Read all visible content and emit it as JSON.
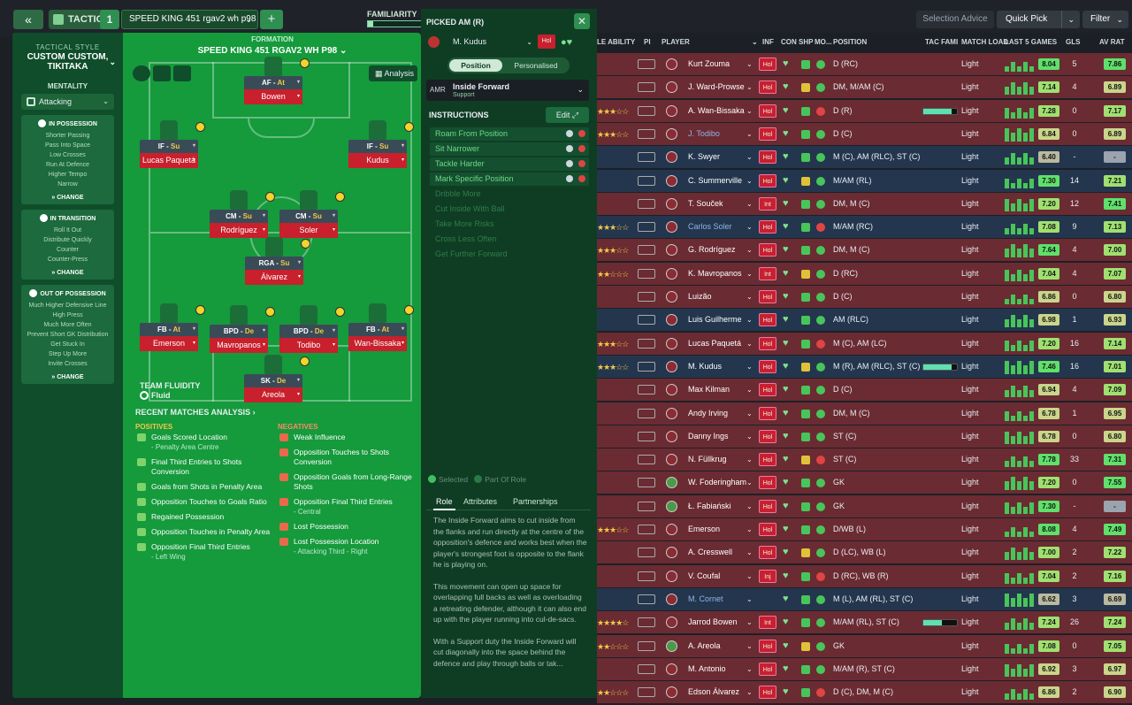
{
  "topbar": {
    "tactics_label": "TACTICS",
    "slot": "1",
    "tactic_name": "SPEED KING 451 rgav2 wh p98",
    "familiarity_label": "FAMILIARITY",
    "familiarity": 0.1,
    "selection_advice": "Selection Advice",
    "quick_pick": "Quick Pick",
    "filter": "Filter"
  },
  "style": {
    "tactical_style_label": "TACTICAL STYLE",
    "tactical_style": "CUSTOM CUSTOM, TIKITAKA",
    "mentality_label": "MENTALITY",
    "mentality": "Attacking",
    "in_possession": {
      "title": "IN POSSESSION",
      "items": [
        "Shorter Passing",
        "Pass Into Space",
        "Low Crosses",
        "Run At Defence",
        "Higher Tempo",
        "Narrow"
      ]
    },
    "in_transition": {
      "title": "IN TRANSITION",
      "items": [
        "Roll It Out",
        "Distribute Quickly",
        "Counter",
        "Counter-Press"
      ]
    },
    "out_of_possession": {
      "title": "OUT OF POSSESSION",
      "items": [
        "Much Higher Defensive Line",
        "High Press",
        "Much More Often",
        "Prevent Short GK Distribution",
        "Get Stuck In",
        "Step Up More",
        "Invite Crosses"
      ]
    },
    "change": "CHANGE"
  },
  "formation": {
    "label": "FORMATION",
    "name": "SPEED KING 451 RGAV2 WH P98",
    "analysis": "Analysis",
    "fluidity_label": "TEAM FLUIDITY",
    "fluidity": "Fluid",
    "players": [
      {
        "role": "AF",
        "duty": "At",
        "name": "Bowen"
      },
      {
        "role": "IF",
        "duty": "Su",
        "name": "Lucas Paquetá"
      },
      {
        "role": "IF",
        "duty": "Su",
        "name": "Kudus"
      },
      {
        "role": "CM",
        "duty": "Su",
        "name": "Rodríguez"
      },
      {
        "role": "CM",
        "duty": "Su",
        "name": "Soler"
      },
      {
        "role": "RGA",
        "duty": "Su",
        "name": "Álvarez"
      },
      {
        "role": "FB",
        "duty": "At",
        "name": "Emerson"
      },
      {
        "role": "BPD",
        "duty": "De",
        "name": "Mavropanos"
      },
      {
        "role": "BPD",
        "duty": "De",
        "name": "Todibo"
      },
      {
        "role": "FB",
        "duty": "At",
        "name": "Wan-Bissaka"
      },
      {
        "role": "SK",
        "duty": "De",
        "name": "Areola"
      }
    ]
  },
  "analysis": {
    "title": "RECENT MATCHES ANALYSIS ›",
    "positives_label": "POSITIVES",
    "negatives_label": "NEGATIVES",
    "positives": [
      {
        "t": "Goals Scored Location",
        "s": "- Penalty Area Centre"
      },
      {
        "t": "Final Third Entries to Shots Conversion",
        "s": ""
      },
      {
        "t": "Goals from Shots in Penalty Area",
        "s": ""
      },
      {
        "t": "Opposition Touches to Goals Ratio",
        "s": ""
      },
      {
        "t": "Regained Possession",
        "s": ""
      },
      {
        "t": "Opposition Touches in Penalty Area",
        "s": ""
      },
      {
        "t": "Opposition Final Third Entries",
        "s": "- Left Wing"
      }
    ],
    "negatives": [
      {
        "t": "Weak Influence",
        "s": ""
      },
      {
        "t": "Opposition Touches to Shots Conversion",
        "s": ""
      },
      {
        "t": "Opposition Goals from Long-Range Shots",
        "s": ""
      },
      {
        "t": "Opposition Final Third Entries",
        "s": "- Central"
      },
      {
        "t": "Lost Possession",
        "s": ""
      },
      {
        "t": "Lost Possession Location",
        "s": "- Attacking Third - Right"
      }
    ]
  },
  "picked": {
    "title": "PICKED AM (R)",
    "player": "M. Kudus",
    "hol": "Hol",
    "tab_position": "Position",
    "tab_personalised": "Personalised",
    "role_abbr": "AMR",
    "role_name": "Inside Forward",
    "role_duty": "Support",
    "instructions_label": "INSTRUCTIONS",
    "edit": "Edit",
    "instructions_on": [
      "Roam From Position",
      "Sit Narrower",
      "Tackle Harder",
      "Mark Specific Position"
    ],
    "instructions_off": [
      "Dribble More",
      "Cut Inside With Ball",
      "Take More Risks",
      "Cross Less Often",
      "Get Further Forward"
    ],
    "legend_selected": "Selected",
    "legend_part": "Part Of Role",
    "tabs": [
      "Role",
      "Attributes",
      "Partnerships"
    ],
    "desc": [
      "The Inside Forward aims to cut inside from the flanks and run directly at the centre of the opposition's defence and works best when the player's strongest foot is opposite to the flank he is playing on.",
      "This movement can open up space for overlapping full backs as well as overloading a retreating defender, although it can also end up with the player running into cul-de-sacs.",
      "With a Support duty the Inside Forward will cut diagonally into the space behind the defence and play through balls or tak..."
    ]
  },
  "table": {
    "headers": {
      "ability": "LE ABILITY",
      "pi": "PI",
      "player": "PLAYER",
      "inf": "INF",
      "con": "CON",
      "shp": "SHP",
      "mo": "MO...",
      "position": "POSITION",
      "tac": "TAC FAMI",
      "load": "MATCH LOAD",
      "last5": "LAST 5 GAMES",
      "gls": "GLS",
      "avrat": "AV RAT"
    },
    "rows": [
      {
        "name": "Kurt Zouma",
        "pos": "D (RC)",
        "load": "Light",
        "rat": "8.04",
        "gls": "5",
        "av": "7.86",
        "bg": "red",
        "inf": "Hol",
        "stars": ""
      },
      {
        "name": "J. Ward-Prowse",
        "pos": "DM, M/AM (C)",
        "load": "Light",
        "rat": "7.14",
        "gls": "4",
        "av": "6.89",
        "bg": "red",
        "inf": "Hol",
        "stars": ""
      },
      {
        "name": "A. Wan-Bissaka",
        "pos": "D (R)",
        "load": "Light",
        "rat": "7.28",
        "gls": "0",
        "av": "7.17",
        "bg": "red",
        "inf": "Hol",
        "stars": "★★★☆☆"
      },
      {
        "name": "J. Todibo",
        "pos": "D (C)",
        "load": "Light",
        "rat": "6.84",
        "gls": "0",
        "av": "6.89",
        "bg": "red",
        "inf": "Hol",
        "stars": "★★★☆☆",
        "link": true
      },
      {
        "name": "K. Swyer",
        "pos": "M (C), AM (RLC), ST (C)",
        "load": "Light",
        "rat": "6.40",
        "gls": "-",
        "av": "-",
        "bg": "blue",
        "inf": "Hol",
        "stars": ""
      },
      {
        "name": "C. Summerville",
        "pos": "M/AM (RL)",
        "load": "Light",
        "rat": "7.30",
        "gls": "14",
        "av": "7.21",
        "bg": "blue",
        "inf": "Hol",
        "stars": ""
      },
      {
        "name": "T. Souček",
        "pos": "DM, M (C)",
        "load": "Light",
        "rat": "7.20",
        "gls": "12",
        "av": "7.41",
        "bg": "red",
        "inf": "Int",
        "stars": ""
      },
      {
        "name": "Carlos Soler",
        "pos": "M/AM (RC)",
        "load": "Light",
        "rat": "7.08",
        "gls": "9",
        "av": "7.13",
        "bg": "blue",
        "inf": "Hol",
        "stars": "★★★☆☆",
        "link": true
      },
      {
        "name": "G. Rodríguez",
        "pos": "DM, M (C)",
        "load": "Light",
        "rat": "7.64",
        "gls": "4",
        "av": "7.00",
        "bg": "red",
        "inf": "Hol",
        "stars": "★★★☆☆"
      },
      {
        "name": "K. Mavropanos",
        "pos": "D (RC)",
        "load": "Light",
        "rat": "7.04",
        "gls": "4",
        "av": "7.07",
        "bg": "red",
        "inf": "Int",
        "stars": "★★☆☆☆"
      },
      {
        "name": "Luizão",
        "pos": "D (C)",
        "load": "Light",
        "rat": "6.86",
        "gls": "0",
        "av": "6.80",
        "bg": "red",
        "inf": "Hol",
        "stars": ""
      },
      {
        "name": "Luis Guilherme",
        "pos": "AM (RLC)",
        "load": "Light",
        "rat": "6.98",
        "gls": "1",
        "av": "6.93",
        "bg": "blue",
        "inf": "Hol",
        "stars": ""
      },
      {
        "name": "Lucas Paquetá",
        "pos": "M (C), AM (LC)",
        "load": "Light",
        "rat": "7.20",
        "gls": "16",
        "av": "7.14",
        "bg": "red",
        "inf": "Hol",
        "stars": "★★★☆☆"
      },
      {
        "name": "M. Kudus",
        "pos": "M (R), AM (RLC), ST (C)",
        "load": "Light",
        "rat": "7.46",
        "gls": "16",
        "av": "7.01",
        "bg": "blue",
        "inf": "Hol",
        "stars": "★★★☆☆"
      },
      {
        "name": "Max Kilman",
        "pos": "D (C)",
        "load": "Light",
        "rat": "6.94",
        "gls": "4",
        "av": "7.09",
        "bg": "red",
        "inf": "Hol",
        "stars": ""
      },
      {
        "name": "Andy Irving",
        "pos": "DM, M (C)",
        "load": "Light",
        "rat": "6.78",
        "gls": "1",
        "av": "6.95",
        "bg": "red",
        "inf": "Hol",
        "stars": ""
      },
      {
        "name": "Danny Ings",
        "pos": "ST (C)",
        "load": "Light",
        "rat": "6.78",
        "gls": "0",
        "av": "6.80",
        "bg": "red",
        "inf": "Hol",
        "stars": ""
      },
      {
        "name": "N. Füllkrug",
        "pos": "ST (C)",
        "load": "Light",
        "rat": "7.78",
        "gls": "33",
        "av": "7.31",
        "bg": "red",
        "inf": "Hol",
        "stars": ""
      },
      {
        "name": "W. Foderingham",
        "pos": "GK",
        "load": "Light",
        "rat": "7.20",
        "gls": "0",
        "av": "7.55",
        "bg": "red",
        "inf": "Hol",
        "stars": "",
        "gk": true
      },
      {
        "name": "Ł. Fabiański",
        "pos": "GK",
        "load": "Light",
        "rat": "7.30",
        "gls": "-",
        "av": "-",
        "bg": "red",
        "inf": "Hol",
        "stars": "",
        "gk": true
      },
      {
        "name": "Emerson",
        "pos": "D/WB (L)",
        "load": "Light",
        "rat": "8.08",
        "gls": "4",
        "av": "7.49",
        "bg": "red",
        "inf": "Hol",
        "stars": "★★★☆☆"
      },
      {
        "name": "A. Cresswell",
        "pos": "D (LC), WB (L)",
        "load": "Light",
        "rat": "7.00",
        "gls": "2",
        "av": "7.22",
        "bg": "red",
        "inf": "Hol",
        "stars": ""
      },
      {
        "name": "V. Coufal",
        "pos": "D (RC), WB (R)",
        "load": "Light",
        "rat": "7.04",
        "gls": "2",
        "av": "7.16",
        "bg": "red",
        "inf": "Inj",
        "stars": ""
      },
      {
        "name": "M. Cornet",
        "pos": "M (L), AM (RL), ST (C)",
        "load": "Light",
        "rat": "6.62",
        "gls": "3",
        "av": "6.69",
        "bg": "blue",
        "inf": "",
        "stars": "",
        "link": true
      },
      {
        "name": "Jarrod Bowen",
        "pos": "M/AM (RL), ST (C)",
        "load": "Light",
        "rat": "7.24",
        "gls": "26",
        "av": "7.24",
        "bg": "red",
        "inf": "Int",
        "stars": "★★★★☆"
      },
      {
        "name": "A. Areola",
        "pos": "GK",
        "load": "Light",
        "rat": "7.08",
        "gls": "0",
        "av": "7.05",
        "bg": "red",
        "inf": "Hol",
        "stars": "★★☆☆☆",
        "gk": true
      },
      {
        "name": "M. Antonio",
        "pos": "M/AM (R), ST (C)",
        "load": "Light",
        "rat": "6.92",
        "gls": "3",
        "av": "6.97",
        "bg": "red",
        "inf": "Hol",
        "stars": ""
      },
      {
        "name": "Edson Álvarez",
        "pos": "D (C), DM, M (C)",
        "load": "Light",
        "rat": "6.86",
        "gls": "2",
        "av": "6.90",
        "bg": "red",
        "inf": "Hol",
        "stars": "★★☆☆☆"
      }
    ]
  }
}
